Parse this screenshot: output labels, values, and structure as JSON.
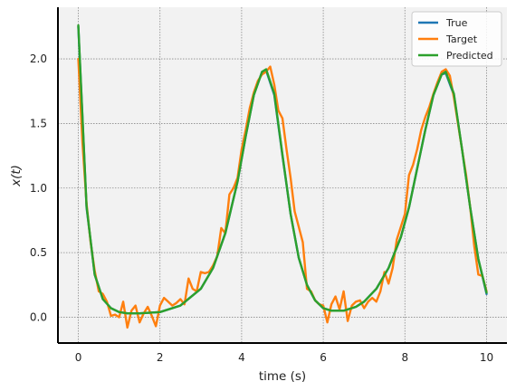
{
  "chart_data": {
    "type": "line",
    "xlabel": "time (s)",
    "ylabel": "x(t)",
    "xlim": [
      -0.5,
      10.5
    ],
    "ylim": [
      -0.2,
      2.4
    ],
    "xticks": [
      0,
      2,
      4,
      6,
      8,
      10
    ],
    "yticks": [
      0.0,
      0.5,
      1.0,
      1.5,
      2.0
    ],
    "xtick_labels": [
      "0",
      "2",
      "4",
      "6",
      "8",
      "10"
    ],
    "ytick_labels": [
      "0.0",
      "0.5",
      "1.0",
      "1.5",
      "2.0"
    ],
    "grid": true,
    "legend_position": "top-right",
    "series": [
      {
        "name": "True",
        "color": "#1f77b4",
        "x": [
          0,
          0.2,
          0.4,
          0.6,
          0.8,
          1.0,
          1.2,
          1.5,
          2.0,
          2.5,
          3.0,
          3.3,
          3.6,
          3.9,
          4.1,
          4.3,
          4.5,
          4.6,
          4.8,
          5.0,
          5.2,
          5.4,
          5.6,
          5.8,
          6.0,
          6.2,
          6.5,
          6.8,
          7.0,
          7.3,
          7.6,
          7.9,
          8.1,
          8.3,
          8.5,
          8.7,
          8.9,
          9.0,
          9.2,
          9.4,
          9.6,
          9.8,
          10.0
        ],
        "y": [
          2.25,
          0.85,
          0.33,
          0.14,
          0.07,
          0.04,
          0.03,
          0.03,
          0.04,
          0.09,
          0.22,
          0.38,
          0.65,
          1.05,
          1.4,
          1.72,
          1.9,
          1.91,
          1.72,
          1.25,
          0.8,
          0.46,
          0.25,
          0.13,
          0.07,
          0.05,
          0.05,
          0.08,
          0.12,
          0.22,
          0.38,
          0.62,
          0.85,
          1.15,
          1.45,
          1.72,
          1.88,
          1.89,
          1.72,
          1.3,
          0.85,
          0.45,
          0.18
        ]
      },
      {
        "name": "Target",
        "color": "#ff7f0e",
        "x": [
          0,
          0.1,
          0.2,
          0.3,
          0.4,
          0.5,
          0.6,
          0.7,
          0.8,
          0.9,
          1.0,
          1.1,
          1.2,
          1.3,
          1.4,
          1.5,
          1.6,
          1.7,
          1.8,
          1.9,
          2.0,
          2.1,
          2.2,
          2.3,
          2.4,
          2.5,
          2.6,
          2.7,
          2.8,
          2.9,
          3.0,
          3.1,
          3.2,
          3.3,
          3.4,
          3.5,
          3.6,
          3.7,
          3.8,
          3.9,
          4.0,
          4.1,
          4.2,
          4.3,
          4.4,
          4.5,
          4.6,
          4.7,
          4.8,
          4.9,
          5.0,
          5.1,
          5.2,
          5.3,
          5.4,
          5.5,
          5.6,
          5.7,
          5.8,
          5.9,
          6.0,
          6.1,
          6.2,
          6.3,
          6.4,
          6.5,
          6.6,
          6.7,
          6.8,
          6.9,
          7.0,
          7.1,
          7.2,
          7.3,
          7.4,
          7.5,
          7.6,
          7.7,
          7.8,
          7.9,
          8.0,
          8.1,
          8.2,
          8.3,
          8.4,
          8.5,
          8.6,
          8.7,
          8.8,
          8.9,
          9.0,
          9.1,
          9.2,
          9.3,
          9.4,
          9.5,
          9.6,
          9.7,
          9.8,
          9.9,
          10.0
        ],
        "y": [
          2.0,
          1.35,
          0.88,
          0.58,
          0.36,
          0.2,
          0.18,
          0.12,
          0.01,
          0.02,
          0.0,
          0.12,
          -0.08,
          0.05,
          0.09,
          -0.04,
          0.03,
          0.08,
          0.01,
          -0.07,
          0.09,
          0.15,
          0.12,
          0.09,
          0.11,
          0.14,
          0.1,
          0.3,
          0.22,
          0.2,
          0.35,
          0.34,
          0.35,
          0.4,
          0.47,
          0.69,
          0.65,
          0.95,
          1.0,
          1.08,
          1.3,
          1.45,
          1.62,
          1.74,
          1.83,
          1.88,
          1.9,
          1.94,
          1.8,
          1.6,
          1.54,
          1.3,
          1.08,
          0.82,
          0.7,
          0.58,
          0.22,
          0.2,
          0.13,
          0.1,
          0.09,
          -0.04,
          0.1,
          0.16,
          0.06,
          0.2,
          -0.03,
          0.09,
          0.12,
          0.13,
          0.07,
          0.12,
          0.15,
          0.12,
          0.2,
          0.35,
          0.26,
          0.38,
          0.6,
          0.7,
          0.8,
          1.1,
          1.18,
          1.3,
          1.45,
          1.55,
          1.63,
          1.73,
          1.82,
          1.9,
          1.92,
          1.87,
          1.7,
          1.5,
          1.3,
          1.1,
          0.85,
          0.55,
          0.33,
          0.32,
          0.2
        ]
      },
      {
        "name": "Predicted",
        "color": "#2ca02c",
        "x": [
          0,
          0.2,
          0.4,
          0.6,
          0.8,
          1.0,
          1.2,
          1.5,
          2.0,
          2.5,
          3.0,
          3.3,
          3.6,
          3.9,
          4.1,
          4.3,
          4.5,
          4.6,
          4.8,
          5.0,
          5.2,
          5.4,
          5.6,
          5.8,
          6.0,
          6.2,
          6.5,
          6.8,
          7.0,
          7.3,
          7.6,
          7.9,
          8.1,
          8.3,
          8.5,
          8.7,
          8.9,
          9.0,
          9.2,
          9.4,
          9.6,
          9.8,
          10.0
        ],
        "y": [
          2.26,
          0.86,
          0.33,
          0.14,
          0.07,
          0.04,
          0.03,
          0.03,
          0.04,
          0.09,
          0.22,
          0.38,
          0.65,
          1.05,
          1.4,
          1.72,
          1.9,
          1.92,
          1.73,
          1.26,
          0.8,
          0.46,
          0.25,
          0.13,
          0.07,
          0.05,
          0.05,
          0.08,
          0.12,
          0.22,
          0.38,
          0.62,
          0.85,
          1.15,
          1.45,
          1.72,
          1.88,
          1.9,
          1.73,
          1.3,
          0.85,
          0.45,
          0.19
        ]
      }
    ]
  }
}
